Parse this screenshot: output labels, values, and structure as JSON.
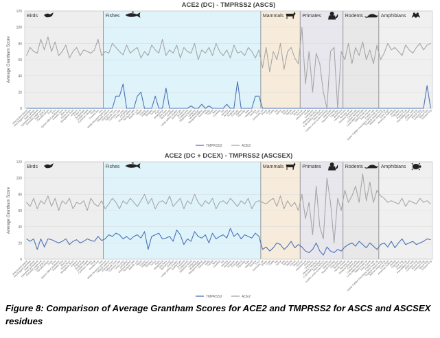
{
  "caption": "Figure 8: Comparison of Average Grantham Scores for ACE2 and TMPRSS2 for ASCS and ASCSEX residues",
  "colors": {
    "tmprss2": "#4a72b5",
    "ace2": "#a6a6a6",
    "grid": "#dcdcdc",
    "divider": "#808080",
    "birds": "#eeeeee",
    "fishes": "#dff3fa",
    "mammals": "#f7ecdc",
    "primates": "#e9e7ee",
    "rodents": "#e8e8e8",
    "amphibians": "#f0f0f0"
  },
  "chart_data": [
    {
      "type": "line",
      "title": "ACE2 (DC) - TMPRSS2 (ASCS)",
      "ylabel": "Average Grantham Score",
      "xlabel": "",
      "ylim": [
        0,
        120
      ],
      "yticks": [
        0,
        20,
        40,
        60,
        80,
        100,
        120
      ],
      "grid": true,
      "legend_position": "bottom",
      "groups": [
        {
          "name": "Birds",
          "start": 0,
          "end": 22,
          "icon": "bird-icon",
          "color_key": "birds"
        },
        {
          "name": "Fishes",
          "start": 22,
          "end": 66,
          "icon": "fish-icon",
          "color_key": "fishes"
        },
        {
          "name": "Mammals",
          "start": 66,
          "end": 77,
          "icon": "goat-icon",
          "color_key": "mammals"
        },
        {
          "name": "Primates",
          "start": 77,
          "end": 89,
          "icon": "monkey-icon",
          "color_key": "primates"
        },
        {
          "name": "Rodents",
          "start": 89,
          "end": 99,
          "icon": "rat-icon",
          "color_key": "rodents"
        },
        {
          "name": "Amphibians",
          "start": 99,
          "end": 114,
          "icon": "frog-icon",
          "color_key": "amphibians"
        }
      ],
      "categories": [
        "Pink-footed goose",
        "Red-legged partridge",
        "Swan goose",
        "Helmeted guineafowl",
        "Eurasian eagle-owl",
        "Rock pigeon",
        "Canada goose",
        "Duck",
        "Emu",
        "Spoon-billed sandpiper",
        "Greater rhea",
        "Blue tit",
        "Zebra finch",
        "Bengalese finch",
        "Kakapo",
        "Great tit",
        "Budgerigar",
        "Golden eagle",
        "Common canary",
        "Rook",
        "Crested ibis",
        "Kea",
        "White-throated sparrow",
        "Atlantic salmon",
        "Rainbow trout",
        "Yellowfin tuna",
        "Common carp",
        "Grass carp",
        "Zebrafish",
        "Channel catfish",
        "Northern pike",
        "Atlantic cod",
        "Tilapia",
        "Guppy",
        "Platyfish",
        "Medaka",
        "Turbot",
        "Fugu",
        "Stickleback",
        "Sea bass",
        "Barramundi",
        "Goldfish",
        "Large yellow croaker",
        "Spotted gar",
        "Arowana",
        "Coelacanth",
        "Elephant shark",
        "Lamprey",
        "Mudskipper",
        "Mangrove killifish",
        "Swordtail",
        "Molly",
        "Cichlid",
        "Tetra",
        "Cavefish",
        "Eel",
        "Herring",
        "Anchovy",
        "Snapper",
        "Grouper",
        "Halibut",
        "Flounder",
        "Sole",
        "Mackerel",
        "Sardine",
        "Trout",
        "Domestic cat",
        "Sheep",
        "Goat",
        "Cattle",
        "Pig",
        "Horse",
        "Dog",
        "Ferret",
        "Rabbit",
        "Camel",
        "Alpaca",
        "Human",
        "Chimpanzee",
        "Gorilla",
        "Orangutan",
        "Rhesus macaque",
        "Crab-eating macaque",
        "Olive baboon",
        "Golden snub-nosed monkey",
        "Marmoset",
        "Squirrel monkey",
        "Capuchin",
        "Bushbaby",
        "House mouse",
        "Norway rat",
        "Chinese hamster",
        "Guinea pig",
        "Golden hamster",
        "Long-tailed chinchilla",
        "Naked mole-rat",
        "Deer mouse",
        "Prairie vole",
        "Upper Galilee mountains blind mole rat",
        "Tropical clawed frog",
        "African clawed frog",
        "Cane toad",
        "American bullfrog",
        "Axolotl",
        "Caecilian",
        "Tree frog",
        "Poison frog",
        "Fire-bellied toad",
        "Asian toad",
        "Common frog",
        "Marsh frog",
        "Leopard frog",
        "Wood frog",
        "Tropical frog"
      ],
      "series": [
        {
          "name": "TMPRSS2",
          "color_key": "tmprss2",
          "values": [
            0,
            0,
            0,
            0,
            0,
            0,
            0,
            0,
            0,
            0,
            0,
            0,
            0,
            0,
            0,
            0,
            0,
            0,
            0,
            0,
            0,
            0,
            0,
            0,
            0,
            15,
            15,
            30,
            0,
            0,
            0,
            15,
            20,
            0,
            0,
            0,
            15,
            0,
            0,
            25,
            0,
            0,
            0,
            0,
            0,
            0,
            3,
            0,
            0,
            5,
            0,
            3,
            0,
            0,
            0,
            0,
            5,
            0,
            0,
            33,
            0,
            0,
            0,
            0,
            15,
            15,
            0,
            0,
            0,
            0,
            0,
            0,
            0,
            0,
            0,
            0,
            0,
            0,
            0,
            0,
            0,
            0,
            0,
            0,
            0,
            0,
            0,
            0,
            0,
            0,
            0,
            0,
            0,
            0,
            0,
            0,
            0,
            0,
            0,
            0,
            0,
            0,
            0,
            0,
            0,
            0,
            0,
            0,
            0,
            0,
            0,
            0,
            28,
            0
          ]
        },
        {
          "name": "ACE2",
          "color_key": "ace2",
          "values": [
            65,
            75,
            70,
            68,
            85,
            72,
            88,
            70,
            82,
            65,
            70,
            78,
            62,
            70,
            75,
            65,
            72,
            70,
            68,
            72,
            85,
            65,
            70,
            68,
            80,
            75,
            70,
            66,
            78,
            68,
            72,
            75,
            62,
            70,
            65,
            78,
            72,
            68,
            85,
            65,
            72,
            68,
            78,
            62,
            75,
            70,
            68,
            80,
            60,
            72,
            68,
            75,
            65,
            80,
            70,
            65,
            72,
            62,
            78,
            68,
            70,
            65,
            75,
            70,
            62,
            72,
            50,
            75,
            45,
            70,
            60,
            80,
            48,
            70,
            75,
            62,
            55,
            100,
            30,
            70,
            20,
            68,
            55,
            20,
            0,
            70,
            75,
            0,
            70,
            60,
            80,
            55,
            75,
            65,
            82,
            60,
            72,
            55,
            78,
            60,
            68,
            80,
            72,
            75,
            70,
            65,
            78,
            72,
            68,
            75,
            80,
            72,
            78,
            80
          ]
        }
      ]
    },
    {
      "type": "line",
      "title": "ACE2 (DC + DCEX) - TMPRSS2 (ASCSEX)",
      "ylabel": "Average Grantham Score",
      "xlabel": "",
      "ylim": [
        0,
        120
      ],
      "yticks": [
        0,
        20,
        40,
        60,
        80,
        100,
        120
      ],
      "grid": true,
      "legend_position": "bottom",
      "groups": [
        {
          "name": "Birds",
          "start": 0,
          "end": 22,
          "icon": "bird-icon",
          "color_key": "birds"
        },
        {
          "name": "Fishes",
          "start": 22,
          "end": 66,
          "icon": "fish-icon",
          "color_key": "fishes"
        },
        {
          "name": "Mammals",
          "start": 66,
          "end": 77,
          "icon": "goat-icon",
          "color_key": "mammals"
        },
        {
          "name": "Primates",
          "start": 77,
          "end": 89,
          "icon": "monkey-icon",
          "color_key": "primates"
        },
        {
          "name": "Rodents",
          "start": 89,
          "end": 99,
          "icon": "rat-icon",
          "color_key": "rodents"
        },
        {
          "name": "Amphibians",
          "start": 99,
          "end": 114,
          "icon": "turtle-icon",
          "color_key": "amphibians"
        }
      ],
      "categories": [
        "Pink-footed goose",
        "Red-legged partridge",
        "Swan goose",
        "Helmeted guineafowl",
        "Eurasian eagle-owl",
        "Rock pigeon",
        "Canada goose",
        "Duck",
        "Emu",
        "Spoon-billed sandpiper",
        "Greater rhea",
        "Blue tit",
        "Zebra finch",
        "Bengalese finch",
        "Kakapo",
        "Great tit",
        "Budgerigar",
        "Golden eagle",
        "Common canary",
        "Rook",
        "Crested ibis",
        "Kea",
        "White-throated sparrow",
        "Atlantic salmon",
        "Rainbow trout",
        "Yellowfin tuna",
        "Common carp",
        "Grass carp",
        "Zebrafish",
        "Channel catfish",
        "Northern pike",
        "Atlantic cod",
        "Tilapia",
        "Guppy",
        "Platyfish",
        "Medaka",
        "Turbot",
        "Fugu",
        "Stickleback",
        "Sea bass",
        "Barramundi",
        "Goldfish",
        "Large yellow croaker",
        "Spotted gar",
        "Arowana",
        "Coelacanth",
        "Elephant shark",
        "Lamprey",
        "Mudskipper",
        "Mangrove killifish",
        "Swordtail",
        "Molly",
        "Cichlid",
        "Tetra",
        "Cavefish",
        "Eel",
        "Herring",
        "Anchovy",
        "Snapper",
        "Grouper",
        "Halibut",
        "Flounder",
        "Sole",
        "Mackerel",
        "Sardine",
        "Trout",
        "Domestic cat",
        "Sheep",
        "Goat",
        "Cattle",
        "Pig",
        "Horse",
        "Dog",
        "Ferret",
        "Rabbit",
        "Camel",
        "Alpaca",
        "Human",
        "Chimpanzee",
        "Gorilla",
        "Orangutan",
        "Rhesus macaque",
        "Crab-eating macaque",
        "Olive baboon",
        "Golden snub-nosed monkey",
        "Marmoset",
        "Squirrel monkey",
        "Capuchin",
        "Bushbaby",
        "House mouse",
        "Norway rat",
        "Chinese hamster",
        "Guinea pig",
        "Golden hamster",
        "Long-tailed chinchilla",
        "Naked mole-rat",
        "Deer mouse",
        "Prairie vole",
        "Upper Galilee mountains blind mole rat",
        "Tropical clawed frog",
        "African clawed frog",
        "Cane toad",
        "American bullfrog",
        "Axolotl",
        "Caecilian",
        "Tree frog",
        "Poison frog",
        "Fire-bellied toad",
        "Asian toad",
        "Common frog",
        "Marsh frog",
        "Leopard frog",
        "Wood frog",
        "Tropical frog"
      ],
      "series": [
        {
          "name": "TMPRSS2",
          "color_key": "tmprss2",
          "values": [
            25,
            22,
            25,
            12,
            25,
            15,
            25,
            24,
            22,
            20,
            22,
            25,
            18,
            22,
            24,
            20,
            22,
            25,
            23,
            22,
            28,
            23,
            25,
            30,
            28,
            32,
            30,
            25,
            28,
            24,
            28,
            30,
            26,
            34,
            12,
            28,
            30,
            32,
            25,
            26,
            28,
            22,
            36,
            30,
            18,
            25,
            22,
            34,
            28,
            26,
            30,
            20,
            32,
            25,
            28,
            30,
            26,
            38,
            28,
            32,
            25,
            30,
            28,
            26,
            32,
            28,
            12,
            15,
            10,
            14,
            20,
            18,
            12,
            16,
            22,
            14,
            18,
            15,
            10,
            8,
            12,
            20,
            10,
            5,
            15,
            10,
            8,
            12,
            10,
            15,
            18,
            20,
            16,
            22,
            18,
            14,
            20,
            16,
            12,
            18,
            20,
            15,
            22,
            14,
            20,
            25,
            18,
            20,
            22,
            18,
            20,
            22,
            25,
            24
          ]
        },
        {
          "name": "ACE2",
          "color_key": "ace2",
          "values": [
            70,
            65,
            75,
            62,
            72,
            68,
            78,
            65,
            75,
            60,
            72,
            68,
            75,
            62,
            70,
            68,
            72,
            60,
            75,
            68,
            65,
            72,
            62,
            68,
            75,
            70,
            62,
            72,
            68,
            75,
            70,
            65,
            72,
            80,
            68,
            75,
            62,
            70,
            72,
            68,
            78,
            65,
            70,
            75,
            62,
            72,
            68,
            80,
            70,
            65,
            72,
            68,
            75,
            62,
            70,
            72,
            68,
            75,
            70,
            65,
            72,
            68,
            75,
            62,
            70,
            72,
            70,
            68,
            72,
            75,
            65,
            78,
            62,
            72,
            65,
            70,
            60,
            80,
            50,
            70,
            30,
            90,
            40,
            25,
            100,
            70,
            20,
            75,
            60,
            85,
            70,
            78,
            90,
            70,
            105,
            72,
            95,
            70,
            85,
            78,
            75,
            70,
            72,
            70,
            68,
            75,
            65,
            72,
            70,
            68,
            75,
            70,
            72,
            68
          ]
        }
      ]
    }
  ]
}
